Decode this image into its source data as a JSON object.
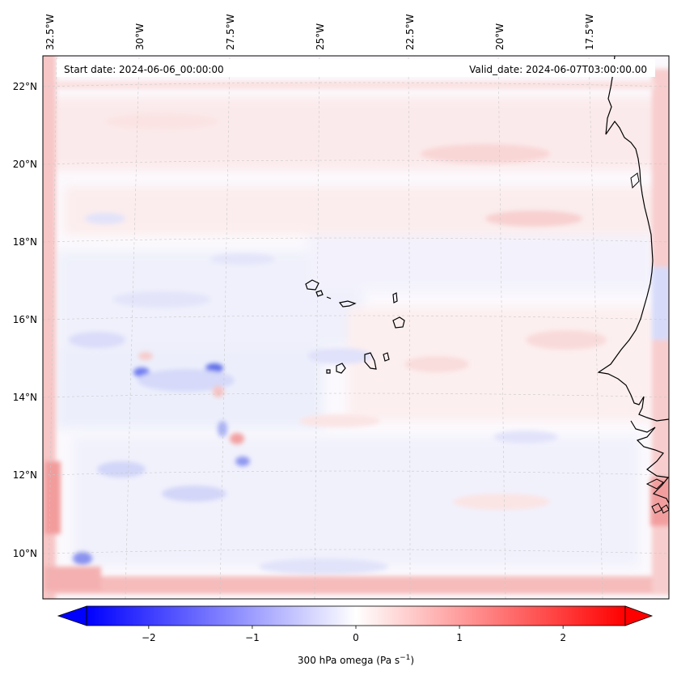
{
  "info": {
    "start_label": "Start date: 2024-06-06_00:00:00",
    "valid_label": "Valid_date: 2024-06-07T03:00:00.00"
  },
  "lon_labels": [
    "32.5°W",
    "30°W",
    "27.5°W",
    "25°W",
    "22.5°W",
    "20°W",
    "17.5°W"
  ],
  "lat_labels": [
    "22°N",
    "20°N",
    "18°N",
    "16°N",
    "14°N",
    "12°N",
    "10°N"
  ],
  "colorbar": {
    "ticks": [
      "−2",
      "−1",
      "0",
      "1",
      "2"
    ],
    "tick_values": [
      -2,
      -1,
      0,
      1,
      2
    ],
    "range": [
      -2.6,
      2.6
    ],
    "label": "300 hPa omega (Pa s",
    "label_sup": "−1",
    "label_end": ")",
    "colormap": "bwr",
    "extend": "both"
  },
  "colors": {
    "negative": "#0000ff",
    "zero": "#ffffff",
    "positive": "#ff0000",
    "coast": "#000000",
    "grid": "#c8c8c8"
  }
}
